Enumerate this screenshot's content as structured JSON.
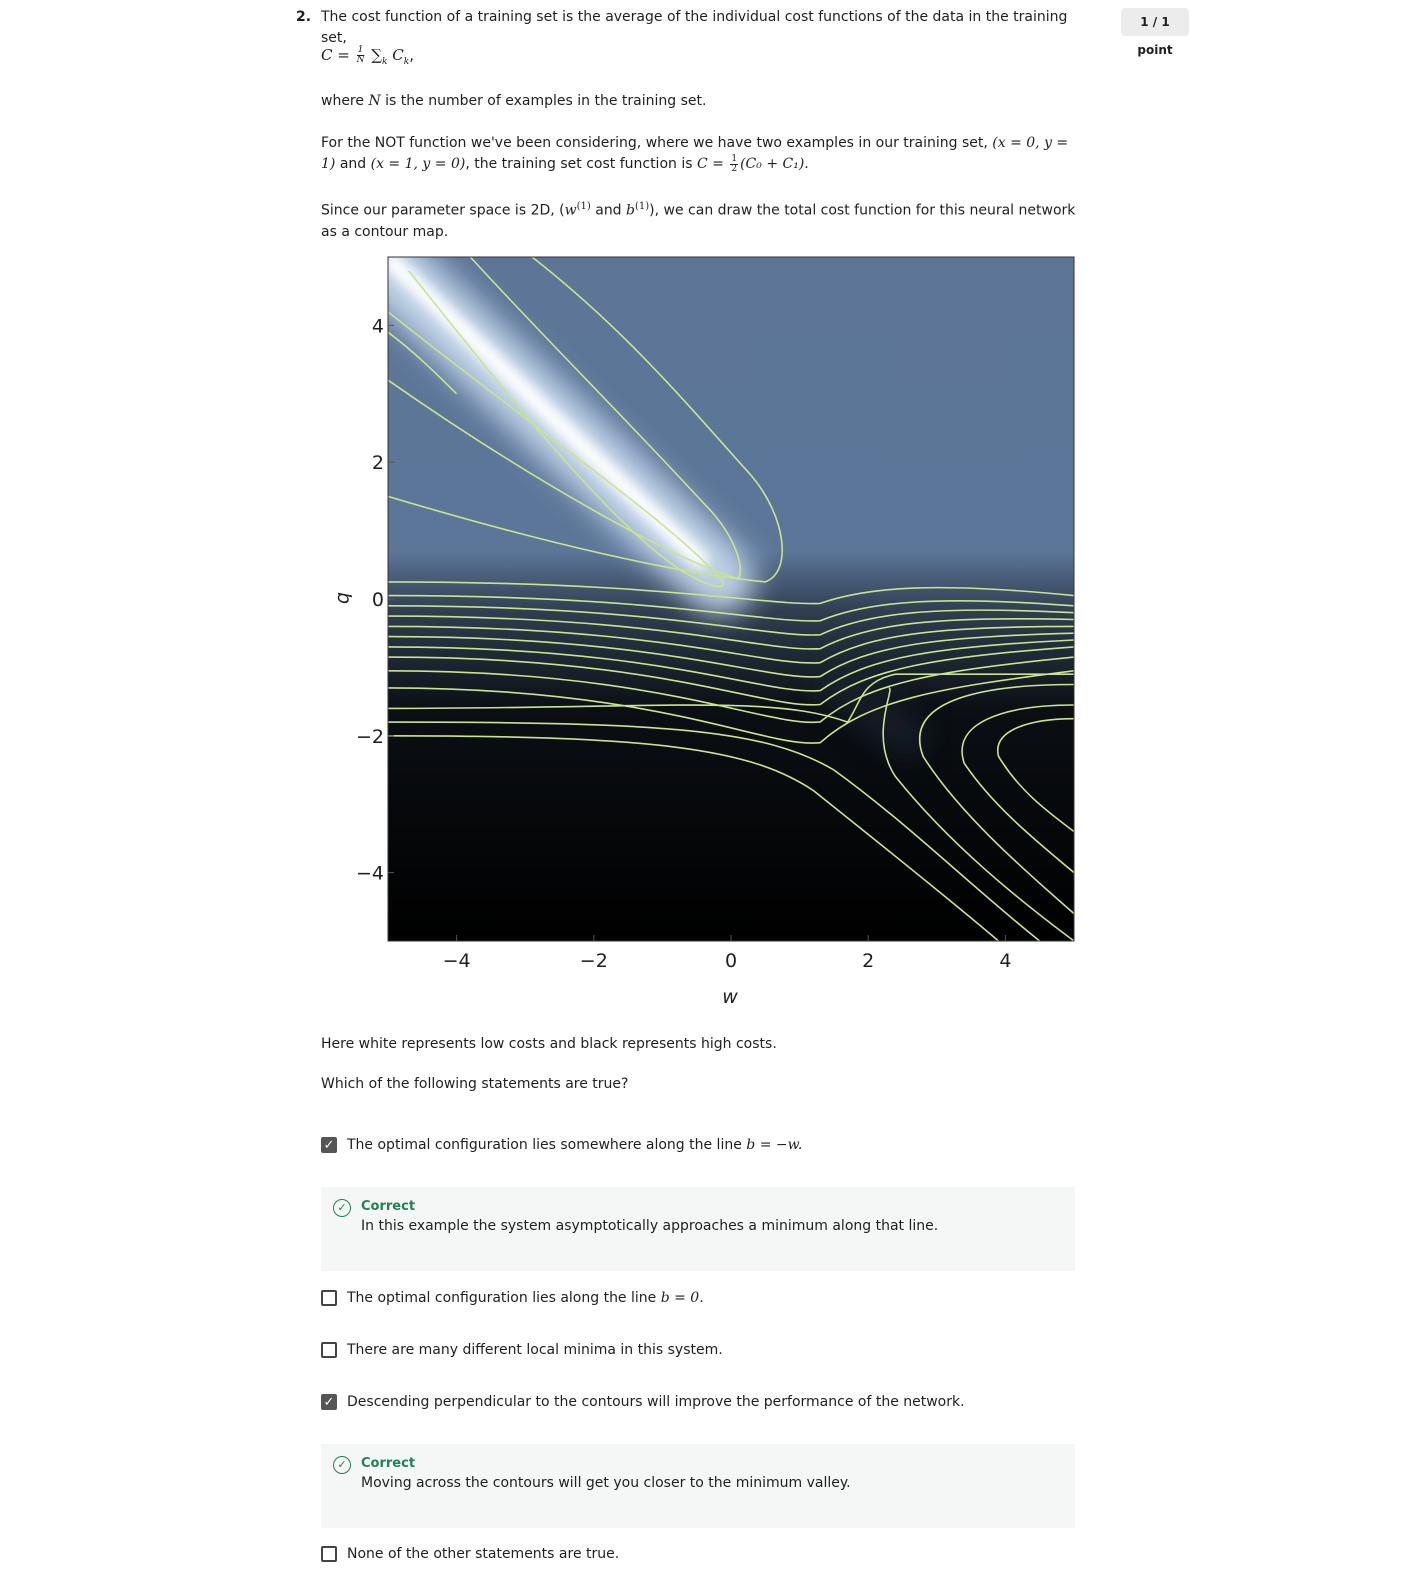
{
  "question": {
    "number": "2.",
    "points": "1 / 1 point",
    "intro": "The cost function of a training set is the average of the individual cost functions of the data in the training set,",
    "formula_lhs": "C =",
    "formula_frac_num": "1",
    "formula_frac_den": "N",
    "formula_rhs": "∑",
    "formula_sub": "k",
    "formula_term": "C",
    "formula_term_sub": "k",
    "formula_end": ",",
    "where_pre": "where",
    "where_var": "N",
    "where_post": "is the number of examples in the training set.",
    "not_pre": "For the NOT function we've been considering, where we have two examples in our training set,",
    "not_ex1": "(x = 0, y = 1)",
    "not_and": "and",
    "not_ex2": "(x = 1, y = 0)",
    "not_mid": ", the training set cost function is",
    "not_formula_lhs": "C =",
    "not_formula_rhs": "(C₀ + C₁).",
    "space_pre": "Since our parameter space is 2D, (",
    "space_w": "w",
    "space_sup1": "(1)",
    "space_and": "and",
    "space_b": "b",
    "space_sup2": "(1)",
    "space_post": "), we can draw the total cost function for this neural network as a contour map.",
    "legend_text": "Here white represents low costs and black represents high costs.",
    "prompt": "Which of the following statements are true?"
  },
  "chart_data": {
    "type": "heatmap",
    "description_units": "contour map of cost over weight w and bias b",
    "xlabel": "w",
    "ylabel": "b",
    "xlim": [
      -5,
      5
    ],
    "ylim": [
      -5,
      5
    ],
    "xticks": [
      "−4",
      "−2",
      "0",
      "2",
      "4"
    ],
    "yticks": [
      "4",
      "2",
      "0",
      "−2",
      "−4"
    ],
    "xtick_values": [
      -4,
      -2,
      0,
      2,
      4
    ],
    "ytick_values": [
      4,
      2,
      0,
      -2,
      -4
    ],
    "colors": {
      "low": "#ffffff",
      "mid": "#5c7699",
      "high": "#000000",
      "contour": "#c9e48f"
    }
  },
  "options": [
    {
      "checked": true,
      "pre": "The optimal configuration lies somewhere along the line",
      "math": "b = −w.",
      "feedback": {
        "title": "Correct",
        "text": "In this example the system asymptotically approaches a minimum along that line."
      }
    },
    {
      "checked": false,
      "pre": "The optimal configuration lies along the line",
      "math": "b = 0."
    },
    {
      "checked": false,
      "pre": "There are many different local minima in this system.",
      "math": ""
    },
    {
      "checked": true,
      "pre": "Descending perpendicular to the contours will improve the performance of the network.",
      "math": "",
      "feedback": {
        "title": "Correct",
        "text": "Moving across the contours will get you closer to the minimum valley."
      }
    },
    {
      "checked": false,
      "pre": "None of the other statements are true.",
      "math": ""
    }
  ]
}
